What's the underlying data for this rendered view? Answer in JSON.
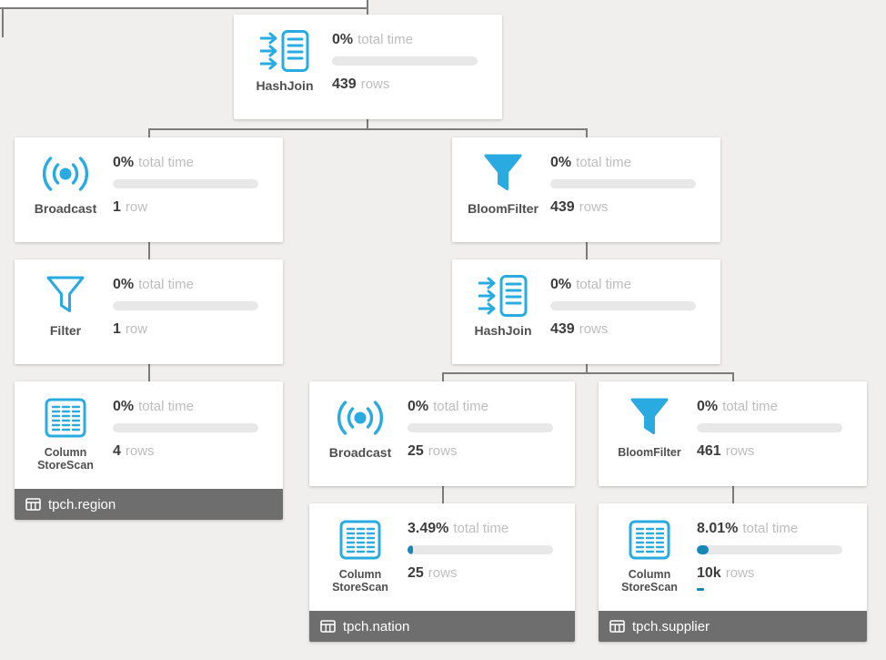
{
  "theme": {
    "accent": "#29abe2",
    "bar_fill": "#1787b8",
    "bar_track": "#e8e8e8",
    "connector": "#7b7b7b",
    "footer_bg": "#6e6e6e",
    "background": "#f0efee"
  },
  "nodes": [
    {
      "type": "HashJoin",
      "percent": "0%",
      "time_label": "total time",
      "progress": 0,
      "rows": "439",
      "rows_label": "rows"
    },
    {
      "type": "Broadcast",
      "percent": "0%",
      "time_label": "total time",
      "progress": 0,
      "rows": "1",
      "rows_label": "row"
    },
    {
      "type": "BloomFilter",
      "percent": "0%",
      "time_label": "total time",
      "progress": 0,
      "rows": "439",
      "rows_label": "rows"
    },
    {
      "type": "Filter",
      "percent": "0%",
      "time_label": "total time",
      "progress": 0,
      "rows": "1",
      "rows_label": "row"
    },
    {
      "type": "HashJoin",
      "percent": "0%",
      "time_label": "total time",
      "progress": 0,
      "rows": "439",
      "rows_label": "rows"
    },
    {
      "type": "ColumnStoreScan",
      "label1": "Column",
      "label2": "StoreScan",
      "percent": "0%",
      "time_label": "total time",
      "progress": 0,
      "rows": "4",
      "rows_label": "rows",
      "table": "tpch.region"
    },
    {
      "type": "Broadcast",
      "percent": "0%",
      "time_label": "total time",
      "progress": 0,
      "rows": "25",
      "rows_label": "rows"
    },
    {
      "type": "BloomFilter",
      "percent": "0%",
      "time_label": "total time",
      "progress": 0,
      "rows": "461",
      "rows_label": "rows"
    },
    {
      "type": "ColumnStoreScan",
      "label1": "Column",
      "label2": "StoreScan",
      "percent": "3.49%",
      "time_label": "total time",
      "progress": 3.49,
      "rows": "25",
      "rows_label": "rows",
      "table": "tpch.nation"
    },
    {
      "type": "ColumnStoreScan",
      "label1": "Column",
      "label2": "StoreScan",
      "percent": "8.01%",
      "time_label": "total time",
      "progress": 8.01,
      "rows": "10k",
      "rows_label": "rows",
      "table": "tpch.supplier"
    }
  ]
}
